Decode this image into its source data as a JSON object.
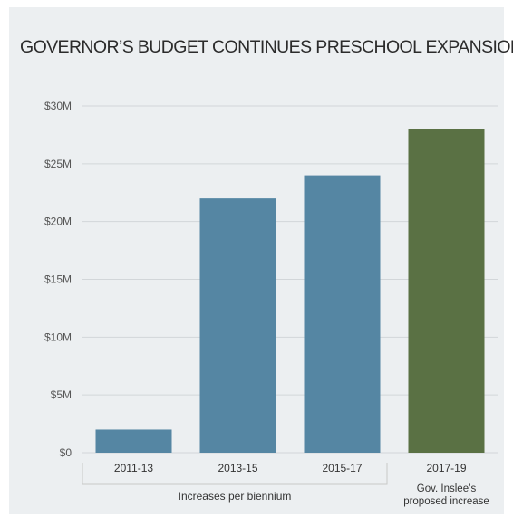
{
  "chart_data": {
    "type": "bar",
    "title": "GOVERNOR’S BUDGET CONTINUES PRESCHOOL EXPANSION",
    "categories": [
      "2011-13",
      "2013-15",
      "2015-17",
      "2017-19"
    ],
    "values": [
      2,
      22,
      24,
      28
    ],
    "unit": "millions of dollars",
    "ylim": [
      0,
      30
    ],
    "yticks": [
      0,
      5,
      10,
      15,
      20,
      25,
      30
    ],
    "ytick_labels": [
      "$0",
      "$5M",
      "$10M",
      "$15M",
      "$20M",
      "$25M",
      "$30M"
    ],
    "grid": true,
    "bar_colors": [
      "#5586a3",
      "#5586a3",
      "#5586a3",
      "#5a7144"
    ],
    "group_label": "Increases per biennium",
    "annotation": [
      "Gov. Inslee’s",
      "proposed increase"
    ]
  },
  "colors": {
    "panel_background": "#eceff1",
    "gridline": "#d2d6d9",
    "bracket": "#c8c8c8"
  }
}
